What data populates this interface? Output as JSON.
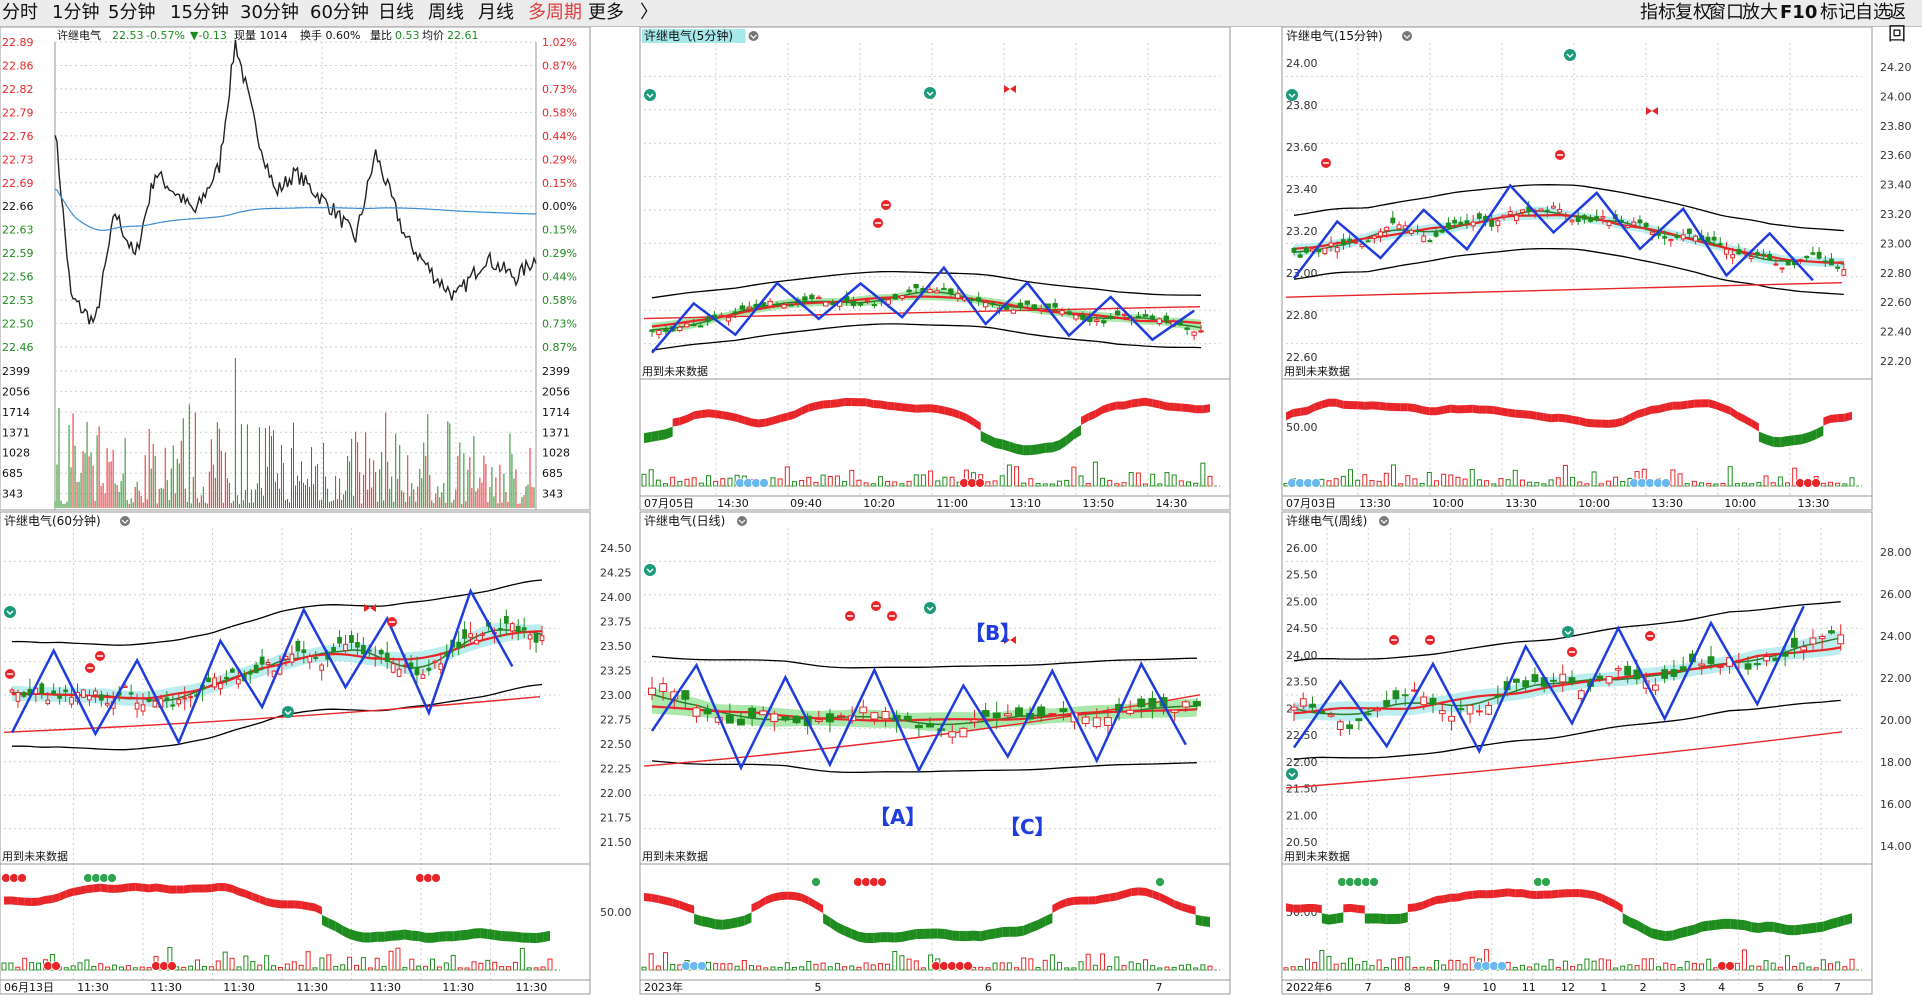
{
  "periods": [
    "分时",
    "1分钟",
    "5分钟",
    "15分钟",
    "30分钟",
    "60分钟",
    "日线",
    "周线",
    "月线",
    "多周期",
    "更多",
    "〉"
  ],
  "active_period": "多周期",
  "tools": [
    "指标",
    "复权",
    "窗口",
    "放大",
    "F10",
    "标记",
    "自选",
    "返回"
  ],
  "colors": {
    "up": "#e8262a",
    "down": "#1e8c1e",
    "bg": "#ffffff",
    "grid": "#cfcfcf",
    "blue": "#1f3cdc",
    "teal": "#a7e8ea",
    "green_fill": "#8ee090"
  },
  "intraday": {
    "title": "许继电气",
    "price": "22.53",
    "pct": "-0.57%",
    "chg": "▼-0.13",
    "volume_label": "现量",
    "volume": "1014",
    "turnover_label": "换手",
    "turnover": "0.60%",
    "ratio_label": "量比",
    "ratio": "0.53",
    "avg_label": "均价",
    "avg": "22.61",
    "left_axis": [
      "22.89",
      "22.86",
      "22.82",
      "22.79",
      "22.76",
      "22.73",
      "22.69",
      "22.66",
      "22.63",
      "22.59",
      "22.56",
      "22.53",
      "22.50",
      "22.46"
    ],
    "right_axis": [
      "1.02%",
      "0.87%",
      "0.73%",
      "0.58%",
      "0.44%",
      "0.29%",
      "0.15%",
      "0.00%",
      "0.15%",
      "0.29%",
      "0.44%",
      "0.58%",
      "0.73%",
      "0.87%"
    ],
    "vol_axis": [
      "2399",
      "2056",
      "1714",
      "1371",
      "1028",
      "685",
      "343"
    ]
  },
  "panels": [
    {
      "id": "m5",
      "title": "许继电气(5分钟)",
      "highlight": true,
      "axis": [],
      "osc_axis": "",
      "note": "用到未来数据",
      "dates": [
        "07月05日",
        "14:30",
        "09:40",
        "10:20",
        "11:00",
        "13:10",
        "13:50",
        "14:30"
      ]
    },
    {
      "id": "m15",
      "title": "许继电气(15分钟)",
      "highlight": false,
      "axis": [
        "24.00",
        "23.80",
        "23.60",
        "23.40",
        "23.20",
        "23.00",
        "22.80",
        "22.60"
      ],
      "right_axis": [
        "24.20",
        "24.00",
        "23.80",
        "23.60",
        "23.40",
        "23.20",
        "23.00",
        "22.80",
        "22.60",
        "22.40",
        "22.20"
      ],
      "osc_axis": "50.00",
      "note": "用到未来数据",
      "dates": [
        "07月03日",
        "13:30",
        "10:00",
        "13:30",
        "10:00",
        "13:30",
        "10:00",
        "13:30"
      ]
    },
    {
      "id": "m60",
      "title": "许继电气(60分钟)",
      "highlight": false,
      "axis": [],
      "osc_axis": "",
      "note": "用到未来数据",
      "dates": [
        "06月13日",
        "11:30",
        "11:30",
        "11:30",
        "11:30",
        "11:30",
        "11:30",
        "11:30"
      ]
    },
    {
      "id": "day",
      "title": "许继电气(日线)",
      "highlight": false,
      "axis": [
        "24.50",
        "24.25",
        "24.00",
        "23.75",
        "23.50",
        "23.25",
        "23.00",
        "22.75",
        "22.50",
        "22.25",
        "22.00",
        "21.75",
        "21.50"
      ],
      "osc_axis": "50.00",
      "note": "用到未来数据",
      "dates": [
        "2023年",
        "5",
        "6",
        "7"
      ],
      "waves": [
        "【B】",
        "【A】",
        "【C】"
      ]
    },
    {
      "id": "week",
      "title": "许继电气(周线)",
      "highlight": false,
      "axis": [
        "26.00",
        "25.50",
        "25.00",
        "24.50",
        "24.00",
        "23.50",
        "23.00",
        "22.50",
        "22.00",
        "21.50",
        "21.00",
        "20.50"
      ],
      "right_axis": [
        "28.00",
        "26.00",
        "24.00",
        "22.00",
        "20.00",
        "18.00",
        "16.00",
        "14.00"
      ],
      "osc_axis": "50.00",
      "note": "用到未来数据",
      "dates": [
        "2022年",
        "6",
        "7",
        "8",
        "9",
        "10",
        "11",
        "12",
        "1",
        "2",
        "3",
        "4",
        "5",
        "6",
        "7"
      ]
    }
  ]
}
